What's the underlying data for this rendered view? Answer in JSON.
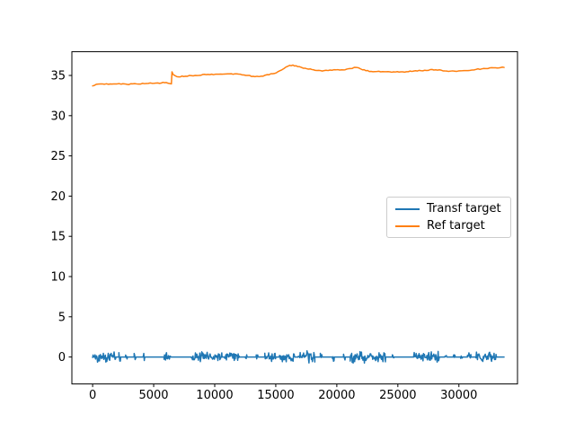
{
  "figure": {
    "background": "#ffffff",
    "axes_facecolor": "#ffffff",
    "spine_color": "#000000",
    "tick_color": "#000000",
    "tick_label_color": "#000000"
  },
  "legend": {
    "border_color": "#cccccc",
    "background": "#ffffff"
  },
  "chart_data": {
    "type": "line",
    "title": "",
    "xlabel": "",
    "ylabel": "",
    "grid": false,
    "legend_position": "center right",
    "xlim": [
      -1700,
      34800
    ],
    "ylim": [
      -3.35,
      37.95
    ],
    "x_ticks": [
      0,
      5000,
      10000,
      15000,
      20000,
      25000,
      30000
    ],
    "y_ticks": [
      0,
      5,
      10,
      15,
      20,
      25,
      30,
      35
    ],
    "series": [
      {
        "name": "Transf target",
        "color": "#1f77b4",
        "style": "noisy-baseline",
        "baseline": 0,
        "x_range": [
          0,
          33700
        ],
        "noise_amplitude": 0.8,
        "burst_intervals": [
          [
            0,
            1900
          ],
          [
            2150,
            2300
          ],
          [
            2700,
            2850
          ],
          [
            3400,
            3550
          ],
          [
            4150,
            4300
          ],
          [
            5850,
            6400
          ],
          [
            8100,
            10600
          ],
          [
            10800,
            12000
          ],
          [
            12500,
            12650
          ],
          [
            13400,
            13550
          ],
          [
            14100,
            15000
          ],
          [
            15300,
            16600
          ],
          [
            16800,
            18200
          ],
          [
            18650,
            18800
          ],
          [
            19650,
            19800
          ],
          [
            20550,
            20700
          ],
          [
            21100,
            24000
          ],
          [
            24550,
            24700
          ],
          [
            26300,
            28400
          ],
          [
            28850,
            29000
          ],
          [
            29550,
            29700
          ],
          [
            30150,
            30300
          ],
          [
            30700,
            31000
          ],
          [
            31400,
            33100
          ]
        ]
      },
      {
        "name": "Ref target",
        "color": "#ff7f0e",
        "style": "line",
        "jitter": 0.06,
        "points": [
          [
            0,
            33.7
          ],
          [
            300,
            33.9
          ],
          [
            800,
            33.95
          ],
          [
            1300,
            33.9
          ],
          [
            2000,
            33.95
          ],
          [
            2800,
            33.9
          ],
          [
            3600,
            33.95
          ],
          [
            4400,
            34.0
          ],
          [
            5200,
            34.05
          ],
          [
            5900,
            34.1
          ],
          [
            6300,
            34.0
          ],
          [
            6450,
            33.95
          ],
          [
            6500,
            35.45
          ],
          [
            6600,
            35.1
          ],
          [
            6900,
            34.85
          ],
          [
            7600,
            34.9
          ],
          [
            8400,
            35.0
          ],
          [
            9300,
            35.1
          ],
          [
            10200,
            35.15
          ],
          [
            11200,
            35.2
          ],
          [
            12100,
            35.15
          ],
          [
            12700,
            35.0
          ],
          [
            13300,
            34.85
          ],
          [
            13800,
            34.9
          ],
          [
            14300,
            35.1
          ],
          [
            14900,
            35.25
          ],
          [
            15500,
            35.7
          ],
          [
            16000,
            36.15
          ],
          [
            16400,
            36.3
          ],
          [
            16800,
            36.1
          ],
          [
            17400,
            35.9
          ],
          [
            18100,
            35.7
          ],
          [
            18800,
            35.55
          ],
          [
            19600,
            35.65
          ],
          [
            20400,
            35.7
          ],
          [
            21100,
            35.85
          ],
          [
            21600,
            36.0
          ],
          [
            22100,
            35.7
          ],
          [
            22800,
            35.5
          ],
          [
            23600,
            35.45
          ],
          [
            24500,
            35.4
          ],
          [
            25400,
            35.45
          ],
          [
            26300,
            35.55
          ],
          [
            27200,
            35.65
          ],
          [
            28100,
            35.7
          ],
          [
            29000,
            35.55
          ],
          [
            29800,
            35.5
          ],
          [
            30600,
            35.6
          ],
          [
            31400,
            35.75
          ],
          [
            32200,
            35.85
          ],
          [
            33000,
            35.95
          ],
          [
            33700,
            36.0
          ]
        ]
      }
    ]
  }
}
